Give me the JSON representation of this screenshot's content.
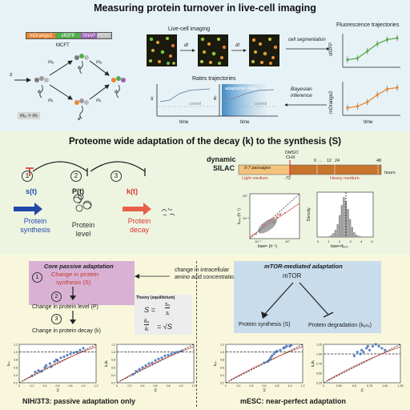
{
  "top": {
    "title": "Measuring protein turnover in live-cell imaging",
    "construct": {
      "segments": [
        "mOrange2",
        "sfGFP",
        "SNAP",
        "PEST"
      ],
      "name": "MCFT"
    },
    "scheme": {
      "s": "s",
      "m_o": "mₒ",
      "m_r": "mᵣ",
      "k": "k",
      "o": "ø",
      "relation": "mₒ > mᵣ"
    },
    "imaging": {
      "label": "Live-cell imaging",
      "dt": "dt"
    },
    "trajectories": {
      "label": "Fluorescence trajectories",
      "y_top": "sfGFP",
      "y_bottom": "mOrange2",
      "segmentation": "cell segmentation",
      "bayes1": "Bayesian",
      "bayes2": "inference"
    },
    "rates": {
      "label": "Rates trajectories",
      "s": "s",
      "k": "k",
      "time": "time",
      "adaptation_delay": "adaptation delay",
      "control": "control"
    },
    "colors": {
      "mOrange2": "#e8862f",
      "sfGFP": "#54ad4c",
      "SNAP": "#9d5fb5",
      "PEST": "#b9b9b9"
    }
  },
  "mid": {
    "title": "Proteome wide adaptation of the decay (k) to the synthesis (S)",
    "steps": [
      "1",
      "2",
      "3"
    ],
    "s_t": "s(t)",
    "p_t": "P(t)",
    "k_t": "k(t)",
    "synthesis_1": "Protein",
    "synthesis_2": "synthesis",
    "level_1": "Protein",
    "level_2": "level",
    "decay_1": "Protein",
    "decay_2": "decay",
    "silac_1": "dynamic",
    "silac_2": "SILAC",
    "timeline": {
      "dmso": "DMSO",
      "chx": "CHX",
      "passages": "5-7 passages",
      "light": "Light medium",
      "heavy": "Heavy medium",
      "t_neg": "-72",
      "t0": "0",
      "dots": "...",
      "t12": "12",
      "t24": "24",
      "t48": "48",
      "unit": "hours"
    },
    "scatter": {
      "ylabel": "kₑₕₓ (h⁻¹)",
      "xlabel": "kᴅᴍˢᵒ (h⁻¹)",
      "y_ticks": [
        "10°",
        "10⁻¹"
      ],
      "x_ticks": [
        "10⁻¹",
        "10°"
      ],
      "fit": "kₑₕₓ = 0.44 × kᴅᴍˢᵒ"
    },
    "hist": {
      "ylabel": "Density",
      "xlabel": "kᴅᴍˢᵒ/kₑₕₓ",
      "x_ticks": [
        "0",
        "1",
        "2",
        "3",
        "4",
        "5"
      ]
    }
  },
  "bot": {
    "core_title": "Core passive adaptation",
    "mtor_title": "mTOR-mediated adaptation",
    "steps": [
      "1",
      "2",
      "3"
    ],
    "change_synth_1": "Change in protein",
    "change_synth_2": "synthesis (S)",
    "change_level": "Change in protein level (P)",
    "change_decay": "Change in protein decay (k)",
    "amino_1": "change in intracellular",
    "amino_2": "amino acid concentration",
    "mtor": "mTOR",
    "prot_synth": "Protein synthesis (S)",
    "prot_degr": "Protein degradation (kₑₕₓ)",
    "theory": {
      "title": "Theory (equilibrium)",
      "eq1_lhs": "S =",
      "eq1_num": "sₒ",
      "eq1_den": "sᵢ",
      "eq2_num": "kₒ",
      "eq2_den": "kᵢ",
      "eq2_rhs": "= √S"
    },
    "caption_left": "NIH/3T3: passive adaptation only",
    "caption_right": "mESC: near-perfect adaptation",
    "plot_axes": {
      "x": "S",
      "y1": "kₑₕ",
      "y2": "kₒ/kᵢ"
    }
  },
  "chart_data": [
    {
      "type": "line",
      "title": "sfGFP",
      "xlabel": "time",
      "series": [
        {
          "values": [
            0.15,
            0.2,
            0.45,
            0.7,
            0.85,
            0.9
          ]
        }
      ]
    },
    {
      "type": "line",
      "title": "mOrange2",
      "xlabel": "time",
      "series": [
        {
          "values": [
            0.15,
            0.2,
            0.35,
            0.6,
            0.8,
            0.85
          ]
        }
      ]
    },
    {
      "type": "scatter",
      "title": "",
      "xlabel": "S",
      "ylabel": "kₑₕ",
      "x_ticks": [
        "0",
        "0.2",
        "0.4",
        "0.6",
        "0.8",
        "1.0",
        "1.2"
      ],
      "y_ticks": [
        "0.2",
        "0.4",
        "0.6",
        "0.8",
        "1.0",
        "1.2"
      ],
      "points": [
        [
          0.2,
          0.38
        ],
        [
          0.25,
          0.48
        ],
        [
          0.3,
          0.52
        ],
        [
          0.35,
          0.5
        ],
        [
          0.4,
          0.6
        ],
        [
          0.42,
          0.65
        ],
        [
          0.48,
          0.7
        ],
        [
          0.5,
          0.62
        ],
        [
          0.55,
          0.75
        ],
        [
          0.58,
          0.8
        ],
        [
          0.6,
          0.78
        ],
        [
          0.65,
          0.85
        ],
        [
          0.7,
          0.88
        ],
        [
          0.75,
          0.92
        ],
        [
          0.8,
          0.95
        ],
        [
          0.85,
          0.98
        ],
        [
          0.9,
          1.0
        ],
        [
          0.95,
          1.05
        ],
        [
          1.0,
          1.1
        ]
      ]
    },
    {
      "type": "scatter",
      "title": "",
      "xlabel": "S",
      "ylabel": "kₒ/kᵢ",
      "x_ticks": [
        "0",
        "0.2",
        "0.4",
        "0.6",
        "0.8",
        "1.0",
        "1.2"
      ],
      "y_ticks": [
        "0.2",
        "0.4",
        "0.6",
        "0.8",
        "1.0",
        "1.2"
      ],
      "points": [
        [
          0.25,
          0.42
        ],
        [
          0.3,
          0.5
        ],
        [
          0.35,
          0.55
        ],
        [
          0.4,
          0.6
        ],
        [
          0.45,
          0.65
        ],
        [
          0.5,
          0.7
        ],
        [
          0.55,
          0.72
        ],
        [
          0.6,
          0.78
        ],
        [
          0.65,
          0.82
        ],
        [
          0.7,
          0.85
        ],
        [
          0.75,
          0.9
        ],
        [
          0.8,
          0.92
        ],
        [
          0.85,
          0.95
        ],
        [
          0.9,
          0.98
        ],
        [
          0.95,
          1.0
        ],
        [
          1.0,
          1.02
        ]
      ]
    },
    {
      "type": "scatter",
      "title": "",
      "xlabel": "S",
      "ylabel": "kₑₕ",
      "x_ticks": [
        "0",
        "0.2",
        "0.4",
        "0.6",
        "0.8",
        "1.0",
        "1.2"
      ],
      "y_ticks": [
        "0.2",
        "0.4",
        "0.6",
        "0.8",
        "1.0",
        "1.2"
      ],
      "points": [
        [
          0.6,
          0.72
        ],
        [
          0.65,
          0.75
        ],
        [
          0.68,
          0.8
        ],
        [
          0.7,
          0.85
        ],
        [
          0.72,
          0.9
        ],
        [
          0.75,
          0.95
        ],
        [
          0.78,
          1.0
        ],
        [
          0.8,
          1.02
        ],
        [
          0.85,
          1.05
        ],
        [
          0.9,
          1.1
        ],
        [
          0.92,
          1.12
        ],
        [
          0.95,
          1.15
        ],
        [
          1.0,
          1.15
        ],
        [
          1.02,
          1.18
        ]
      ]
    },
    {
      "type": "scatter",
      "title": "",
      "xlabel": "S",
      "ylabel": "kₒ/kᵢ",
      "x_ticks": [
        "0",
        "0.25",
        "0.5",
        "0.75",
        "1.00",
        "1.25"
      ],
      "y_ticks": [
        "0.25",
        "0.50",
        "0.75",
        "1.00",
        "1.25"
      ],
      "points": [
        [
          0.5,
          0.95
        ],
        [
          0.55,
          1.05
        ],
        [
          0.6,
          1.0
        ],
        [
          0.62,
          1.1
        ],
        [
          0.65,
          1.05
        ],
        [
          0.7,
          1.15
        ],
        [
          0.72,
          1.2
        ],
        [
          0.75,
          1.1
        ],
        [
          0.8,
          1.2
        ],
        [
          0.85,
          1.25
        ],
        [
          0.9,
          1.2
        ],
        [
          0.95,
          1.15
        ],
        [
          1.0,
          1.1
        ]
      ]
    }
  ]
}
